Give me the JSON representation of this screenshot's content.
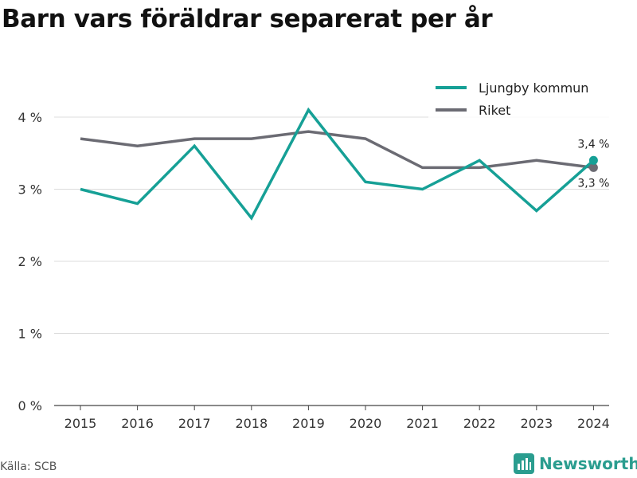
{
  "title": "Barn vars föräldrar separerat per år",
  "source": "Källa: SCB",
  "brand": {
    "name": "Newsworthy",
    "icon": "newsworthy-logo-icon",
    "color": "#2a9d8f"
  },
  "chart_data": {
    "type": "line",
    "title": "Barn vars föräldrar separerat per år",
    "xlabel": "",
    "ylabel": "",
    "categories": [
      "2015",
      "2016",
      "2017",
      "2018",
      "2019",
      "2020",
      "2021",
      "2022",
      "2023",
      "2024"
    ],
    "y_ticks": [
      "0 %",
      "1 %",
      "2 %",
      "3 %",
      "4 %"
    ],
    "ylim": [
      0,
      4.5
    ],
    "grid": true,
    "legend_position": "top-right",
    "series": [
      {
        "name": "Ljungby kommun",
        "color": "#16a096",
        "values": [
          3.0,
          2.8,
          3.6,
          2.6,
          4.1,
          3.1,
          3.0,
          3.4,
          2.7,
          3.4
        ],
        "end_label": "3,4 %"
      },
      {
        "name": "Riket",
        "color": "#6b6b73",
        "values": [
          3.7,
          3.6,
          3.7,
          3.7,
          3.8,
          3.7,
          3.3,
          3.3,
          3.4,
          3.3
        ],
        "end_label": "3,3 %"
      }
    ]
  }
}
